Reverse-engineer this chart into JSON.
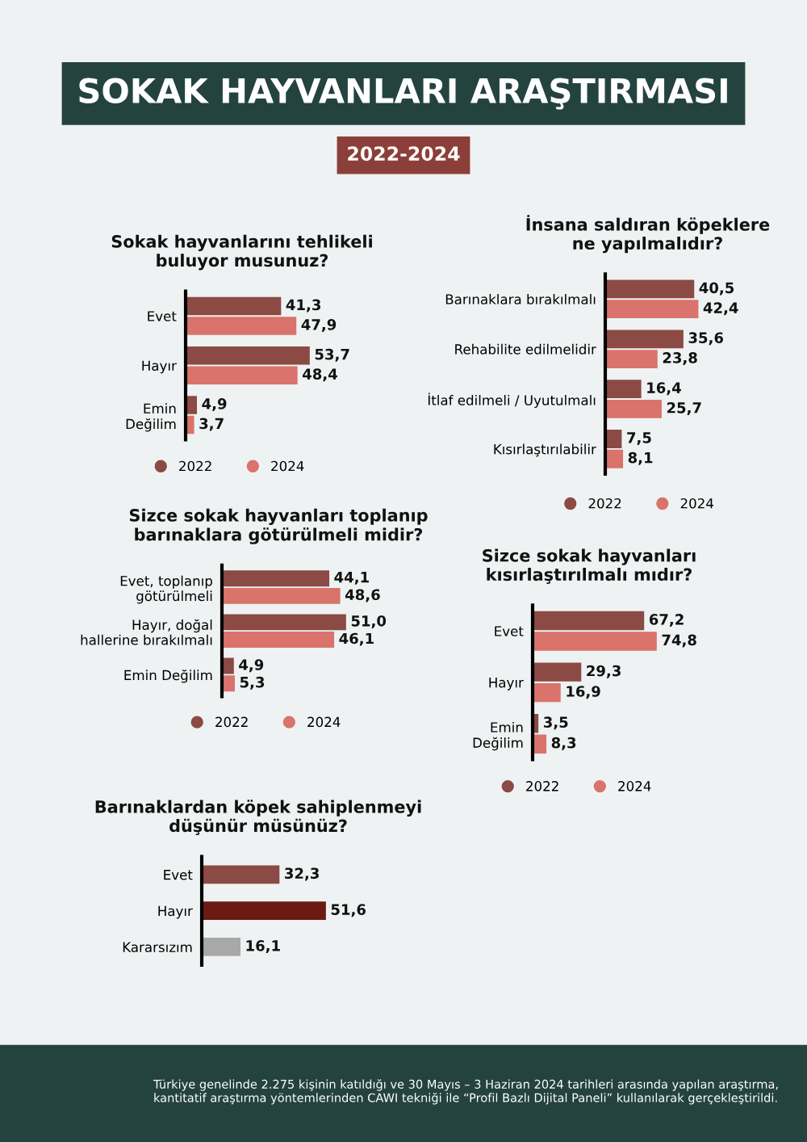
{
  "chart_data": [
    {
      "type": "other",
      "title": "SOKAK HAYVANLARI ARAŞTIRMASI",
      "subtitle": "2022-2024",
      "annotations": [
        "Türkiye genelinde 2.275 kişinin katıldığı ve 30 Mayıs – 3 Haziran 2024 tarihleri arasında yapılan araştırma, kantitatif araştırma yöntemlerinden CAWI tekniği ile “Profil Bazlı Dijital Paneli” kullanılarak gerçekleştirildi."
      ]
    },
    {
      "type": "bar",
      "orientation": "horizontal",
      "title": "Sokak hayvanlarını tehlikeli\nbuluyor musunuz?",
      "categories": [
        "Evet",
        "Hayır",
        "Emin\nDeğilim"
      ],
      "legend": "bottom",
      "series": [
        {
          "name": "2022",
          "color": "#8b4a44",
          "values": [
            41.3,
            53.7,
            4.9
          ],
          "value_labels": [
            "41,3",
            "53,7",
            "4,9"
          ]
        },
        {
          "name": "2024",
          "color": "#d9736b",
          "values": [
            47.9,
            48.4,
            3.7
          ],
          "value_labels": [
            "47,9",
            "48,4",
            "3,7"
          ]
        }
      ]
    },
    {
      "type": "bar",
      "orientation": "horizontal",
      "title": "İnsana saldıran köpeklere\nne yapılmalıdır?",
      "categories": [
        "Barınaklara bırakılmalı",
        "Rehabilite edilmelidir",
        "İtlaf edilmeli / Uyutulmalı",
        "Kısırlaştırılabilir"
      ],
      "legend": "bottom",
      "series": [
        {
          "name": "2022",
          "color": "#8b4a44",
          "values": [
            40.5,
            35.6,
            16.4,
            7.5
          ],
          "value_labels": [
            "40,5",
            "35,6",
            "16,4",
            "7,5"
          ]
        },
        {
          "name": "2024",
          "color": "#d9736b",
          "values": [
            42.4,
            23.8,
            25.7,
            8.1
          ],
          "value_labels": [
            "42,4",
            "23,8",
            "25,7",
            "8,1"
          ]
        }
      ]
    },
    {
      "type": "bar",
      "orientation": "horizontal",
      "title": "Sizce sokak hayvanları toplanıp\nbarınaklara götürülmeli midir?",
      "categories": [
        "Evet, toplanıp\ngötürülmeli",
        "Hayır, doğal\nhallerine bırakılmalı",
        "Emin Değilim"
      ],
      "legend": "bottom",
      "series": [
        {
          "name": "2022",
          "color": "#8b4a44",
          "values": [
            44.1,
            51.0,
            4.9
          ],
          "value_labels": [
            "44,1",
            "51,0",
            "4,9"
          ]
        },
        {
          "name": "2024",
          "color": "#d9736b",
          "values": [
            48.6,
            46.1,
            5.3
          ],
          "value_labels": [
            "48,6",
            "46,1",
            "5,3"
          ]
        }
      ]
    },
    {
      "type": "bar",
      "orientation": "horizontal",
      "title": "Sizce sokak hayvanları\nkısırlaştırılmalı mıdır?",
      "categories": [
        "Evet",
        "Hayır",
        "Emin\nDeğilim"
      ],
      "legend": "bottom",
      "series": [
        {
          "name": "2022",
          "color": "#8b4a44",
          "values": [
            67.2,
            29.3,
            3.5
          ],
          "value_labels": [
            "67,2",
            "29,3",
            "3,5"
          ]
        },
        {
          "name": "2024",
          "color": "#d9736b",
          "values": [
            74.8,
            16.9,
            8.3
          ],
          "value_labels": [
            "74,8",
            "16,9",
            "8,3"
          ]
        }
      ]
    },
    {
      "type": "bar",
      "orientation": "horizontal",
      "title": "Barınaklardan köpek sahiplenmeyi\ndüşünür müsünüz?",
      "categories": [
        "Evet",
        "Hayır",
        "Kararsızım"
      ],
      "values": [
        32.3,
        51.6,
        16.1
      ],
      "value_labels": [
        "32,3",
        "51,6",
        "16,1"
      ],
      "colors": [
        "#8b4a44",
        "#6b1a14",
        "#a8a8a8"
      ]
    }
  ]
}
